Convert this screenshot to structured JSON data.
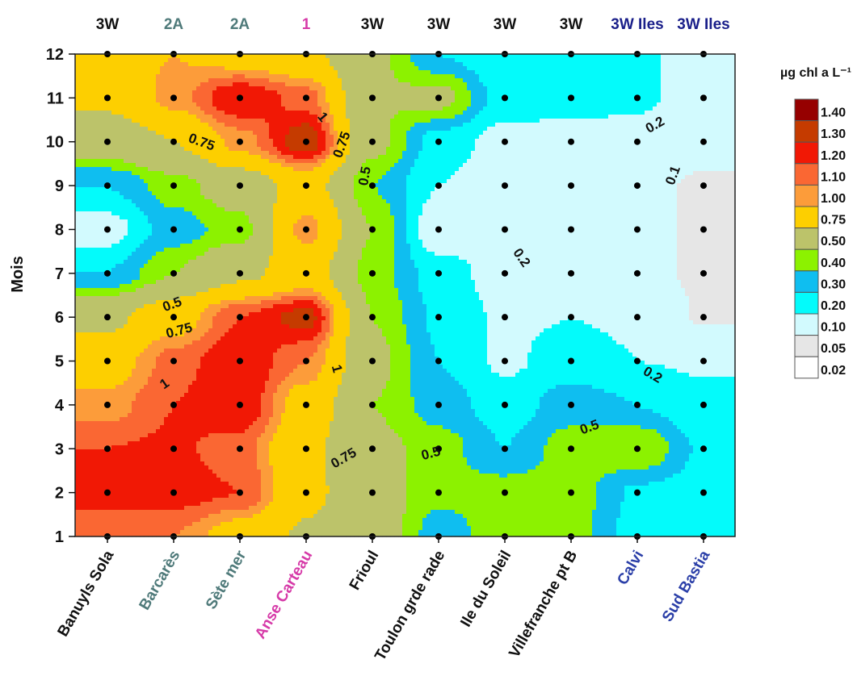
{
  "chart_data": {
    "type": "heatmap",
    "title": "",
    "ylabel": "Mois",
    "xlabel": "",
    "categories": [
      "Banuyls Sola",
      "Barcarès",
      "Sète mer",
      "Anse Carteau",
      "Frioul",
      "Toulon grde rade",
      "Ile du Soleil",
      "Villefranche pt B",
      "Calvi",
      "Sud Bastia"
    ],
    "category_colors": [
      "#111111",
      "#4f7a7a",
      "#4f7a7a",
      "#d63aa8",
      "#111111",
      "#111111",
      "#111111",
      "#111111",
      "#2b3fa8",
      "#2b3fa8"
    ],
    "top_labels": [
      "3W",
      "2A",
      "2A",
      "1",
      "3W",
      "3W",
      "3W",
      "3W",
      "3W Iles",
      "3W Iles"
    ],
    "top_label_colors": [
      "#111111",
      "#4f7a7a",
      "#4f7a7a",
      "#d63aa8",
      "#111111",
      "#111111",
      "#111111",
      "#111111",
      "#1a1f8a",
      "#1a1f8a"
    ],
    "y_ticks": [
      1,
      2,
      3,
      4,
      5,
      6,
      7,
      8,
      9,
      10,
      11,
      12
    ],
    "ylim": [
      1,
      12
    ],
    "z_grid": [
      [
        1.1,
        1.1,
        0.9,
        0.72,
        0.6,
        0.35,
        0.45,
        0.45,
        0.25,
        0.25
      ],
      [
        1.25,
        1.25,
        1.2,
        0.8,
        0.6,
        0.42,
        0.45,
        0.45,
        0.28,
        0.25
      ],
      [
        1.2,
        1.22,
        1.15,
        0.8,
        0.55,
        0.45,
        0.3,
        0.45,
        0.5,
        0.28
      ],
      [
        1.05,
        1.2,
        1.3,
        0.9,
        0.5,
        0.35,
        0.25,
        0.35,
        0.3,
        0.22
      ],
      [
        0.9,
        1.15,
        1.3,
        1.1,
        0.55,
        0.3,
        0.18,
        0.25,
        0.2,
        0.19
      ],
      [
        0.7,
        0.9,
        1.2,
        1.35,
        0.5,
        0.28,
        0.18,
        0.2,
        0.18,
        0.09
      ],
      [
        0.3,
        0.5,
        0.7,
        0.85,
        0.45,
        0.25,
        0.15,
        0.15,
        0.12,
        0.09
      ],
      [
        0.15,
        0.35,
        0.45,
        1.05,
        0.5,
        0.12,
        0.15,
        0.15,
        0.12,
        0.09
      ],
      [
        0.3,
        0.45,
        0.6,
        0.85,
        0.4,
        0.2,
        0.15,
        0.15,
        0.12,
        0.09
      ],
      [
        0.6,
        0.75,
        1.05,
        1.38,
        0.55,
        0.25,
        0.16,
        0.15,
        0.15,
        0.13
      ],
      [
        0.8,
        1.05,
        1.3,
        1.15,
        0.5,
        0.55,
        0.25,
        0.25,
        0.22,
        0.15
      ],
      [
        0.9,
        1.0,
        0.9,
        0.8,
        0.55,
        0.3,
        0.2,
        0.22,
        0.22,
        0.15
      ]
    ],
    "legend": {
      "title": "µg chl a L⁻¹",
      "levels": [
        "1.40",
        "1.30",
        "1.20",
        "1.10",
        "1.00",
        "0.75",
        "0.50",
        "0.40",
        "0.30",
        "0.20",
        "0.10",
        "0.05",
        "0.02"
      ],
      "colors": [
        "#960000",
        "#c53b00",
        "#f11805",
        "#fa6733",
        "#fc9c3a",
        "#fdcf00",
        "#bcc36a",
        "#8cf200",
        "#0fbef0",
        "#03fbfb",
        "#d2fafe",
        "#e6e6e6",
        "#ffffff"
      ]
    },
    "contour_labels": [
      {
        "text": "0.75",
        "x": 2.4,
        "y": 9.9,
        "angle": 20
      },
      {
        "text": "1",
        "x": 4.2,
        "y": 10.5,
        "angle": 50
      },
      {
        "text": "0.75",
        "x": 4.6,
        "y": 9.9,
        "angle": -70
      },
      {
        "text": "0.5",
        "x": 4.95,
        "y": 9.2,
        "angle": -80
      },
      {
        "text": "0.2",
        "x": 7.2,
        "y": 7.3,
        "angle": 55
      },
      {
        "text": "0.2",
        "x": 9.3,
        "y": 10.3,
        "angle": -30
      },
      {
        "text": "0.1",
        "x": 9.6,
        "y": 9.2,
        "angle": -70
      },
      {
        "text": "0.5",
        "x": 2.0,
        "y": 6.2,
        "angle": -20
      },
      {
        "text": "0.75",
        "x": 2.1,
        "y": 5.6,
        "angle": -15
      },
      {
        "text": "1",
        "x": 1.9,
        "y": 4.4,
        "angle": -35
      },
      {
        "text": "1",
        "x": 4.4,
        "y": 4.8,
        "angle": 75
      },
      {
        "text": "0.75",
        "x": 4.6,
        "y": 2.7,
        "angle": -30
      },
      {
        "text": "0.5",
        "x": 5.9,
        "y": 2.8,
        "angle": -15
      },
      {
        "text": "0.2",
        "x": 9.2,
        "y": 4.6,
        "angle": 30
      },
      {
        "text": "0.5",
        "x": 8.3,
        "y": 3.4,
        "angle": -20
      }
    ]
  }
}
